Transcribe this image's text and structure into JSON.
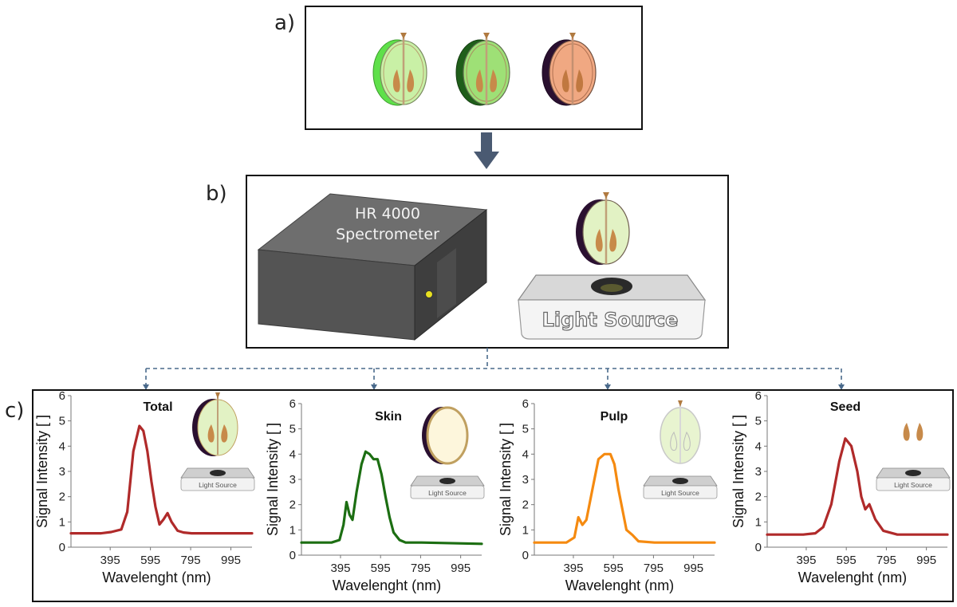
{
  "panels": {
    "a": {
      "label": "a)"
    },
    "b": {
      "label": "b)",
      "spectrometer_line1": "HR 4000",
      "spectrometer_line2": "Spectrometer",
      "light_source": "Light Source"
    },
    "c": {
      "label": "c)"
    }
  },
  "colors": {
    "total": "#b02a2a",
    "skin": "#1c6e12",
    "pulp": "#f58a10",
    "seed": "#b02a2a",
    "arrow": "#4a5a72",
    "dashed": "#4a6a8c",
    "spectrometer": "#5c5c5c"
  },
  "chart_data": [
    {
      "type": "line",
      "title": "Total",
      "xlabel": "Wavelenght (nm)",
      "ylabel": "Signal Intensity [ ]",
      "xlim": [
        200,
        1100
      ],
      "ylim": [
        0,
        6
      ],
      "xticks": [
        395,
        595,
        795,
        995
      ],
      "yticks": [
        0,
        1,
        2,
        3,
        4,
        5,
        6
      ],
      "grid": false,
      "inset_label": "Light Source",
      "series": [
        {
          "x": [
            200,
            350,
            400,
            450,
            480,
            510,
            540,
            560,
            580,
            600,
            620,
            640,
            660,
            680,
            700,
            730,
            760,
            800,
            1000,
            1100
          ],
          "y": [
            0.55,
            0.55,
            0.6,
            0.7,
            1.4,
            3.8,
            4.8,
            4.6,
            3.8,
            2.6,
            1.6,
            0.9,
            1.1,
            1.35,
            1.0,
            0.65,
            0.58,
            0.55,
            0.55,
            0.55
          ]
        }
      ]
    },
    {
      "type": "line",
      "title": "Skin",
      "xlabel": "Wavelenght (nm)",
      "ylabel": "Signal Intensity [ ]",
      "xlim": [
        200,
        1100
      ],
      "ylim": [
        0,
        6
      ],
      "xticks": [
        395,
        595,
        795,
        995
      ],
      "yticks": [
        0,
        1,
        2,
        3,
        4,
        5,
        6
      ],
      "grid": false,
      "inset_label": "Light Source",
      "series": [
        {
          "x": [
            200,
            350,
            390,
            410,
            425,
            440,
            455,
            475,
            500,
            520,
            540,
            560,
            580,
            600,
            620,
            640,
            660,
            690,
            720,
            800,
            1100
          ],
          "y": [
            0.5,
            0.5,
            0.6,
            1.2,
            2.1,
            1.6,
            1.4,
            2.5,
            3.6,
            4.1,
            4.0,
            3.8,
            3.8,
            3.2,
            2.3,
            1.5,
            0.9,
            0.6,
            0.5,
            0.5,
            0.45
          ]
        }
      ]
    },
    {
      "type": "line",
      "title": "Pulp",
      "xlabel": "Wavelenght (nm)",
      "ylabel": "Signal Intensity [ ]",
      "xlim": [
        200,
        1100
      ],
      "ylim": [
        0,
        6
      ],
      "xticks": [
        395,
        595,
        795,
        995
      ],
      "yticks": [
        0,
        1,
        2,
        3,
        4,
        5,
        6
      ],
      "grid": false,
      "inset_label": "Light Source",
      "series": [
        {
          "x": [
            200,
            360,
            400,
            420,
            440,
            460,
            490,
            520,
            550,
            580,
            600,
            620,
            640,
            660,
            690,
            720,
            800,
            1100
          ],
          "y": [
            0.5,
            0.5,
            0.7,
            1.5,
            1.2,
            1.4,
            2.6,
            3.8,
            4.0,
            4.0,
            3.6,
            2.6,
            1.8,
            1.0,
            0.8,
            0.55,
            0.5,
            0.5
          ]
        }
      ]
    },
    {
      "type": "line",
      "title": "Seed",
      "xlabel": "Wavelenght (nm)",
      "ylabel": "Signal Intensity [ ]",
      "xlim": [
        200,
        1100
      ],
      "ylim": [
        0,
        6
      ],
      "xticks": [
        395,
        595,
        795,
        995
      ],
      "yticks": [
        0,
        1,
        2,
        3,
        4,
        5,
        6
      ],
      "grid": false,
      "inset_label": "Light Source",
      "series": [
        {
          "x": [
            200,
            380,
            440,
            480,
            520,
            560,
            590,
            620,
            650,
            670,
            690,
            710,
            740,
            780,
            850,
            1100
          ],
          "y": [
            0.5,
            0.5,
            0.55,
            0.8,
            1.7,
            3.4,
            4.3,
            4.0,
            3.0,
            2.0,
            1.5,
            1.7,
            1.1,
            0.65,
            0.5,
            0.5
          ]
        }
      ]
    }
  ]
}
